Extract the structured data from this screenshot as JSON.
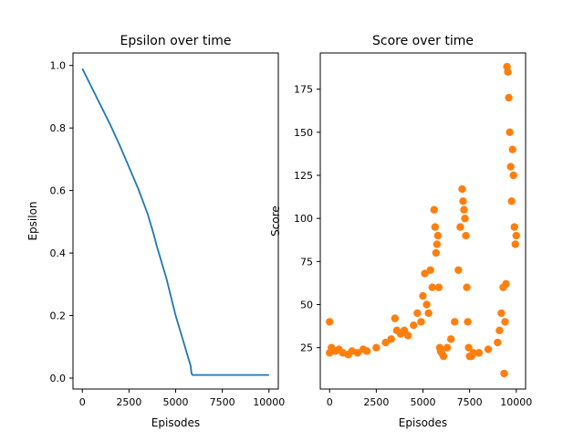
{
  "chart_data": [
    {
      "type": "line",
      "title": "Epsilon over time",
      "xlabel": "Episodes",
      "ylabel": "Epsilon",
      "xlim": [
        -500,
        10500
      ],
      "ylim": [
        -0.035,
        1.04
      ],
      "xticks": [
        0,
        2500,
        5000,
        7500,
        10000
      ],
      "yticks": [
        0.0,
        0.2,
        0.4,
        0.6,
        0.8,
        1.0
      ],
      "xtick_labels": [
        "0",
        "2500",
        "5000",
        "7500",
        "10000"
      ],
      "ytick_labels": [
        "0.0",
        "0.2",
        "0.4",
        "0.6",
        "0.8",
        "1.0"
      ],
      "color": "#1f77b4",
      "series": [
        {
          "x": [
            0,
            500,
            1000,
            1500,
            2000,
            2500,
            3000,
            3500,
            3800,
            4000,
            4500,
            5000,
            5300,
            5500,
            5700,
            5800,
            5850,
            5900,
            6000,
            7000,
            8000,
            9000,
            10000
          ],
          "y": [
            0.99,
            0.93,
            0.87,
            0.81,
            0.745,
            0.675,
            0.605,
            0.525,
            0.465,
            0.42,
            0.32,
            0.2,
            0.14,
            0.1,
            0.06,
            0.04,
            0.015,
            0.01,
            0.01,
            0.01,
            0.01,
            0.01,
            0.01
          ]
        }
      ]
    },
    {
      "type": "scatter",
      "title": "Score over time",
      "xlabel": "Episodes",
      "ylabel": "Score",
      "xlim": [
        -500,
        10500
      ],
      "ylim": [
        1,
        196
      ],
      "xticks": [
        0,
        2500,
        5000,
        7500,
        10000
      ],
      "yticks": [
        25,
        50,
        75,
        100,
        125,
        150,
        175
      ],
      "xtick_labels": [
        "0",
        "2500",
        "5000",
        "7500",
        "10000"
      ],
      "ytick_labels": [
        "25",
        "50",
        "75",
        "100",
        "125",
        "150",
        "175"
      ],
      "color": "#ff7f0e",
      "series": [
        {
          "x": [
            0,
            0,
            100,
            300,
            500,
            700,
            1000,
            1200,
            1500,
            1800,
            2000,
            2500,
            3000,
            3300,
            3500,
            3600,
            3800,
            4000,
            4200,
            4500,
            4700,
            4900,
            5000,
            5100,
            5200,
            5300,
            5400,
            5500,
            5600,
            5650,
            5700,
            5750,
            5800,
            5850,
            5900,
            5950,
            6000,
            6100,
            6300,
            6500,
            6700,
            6900,
            7000,
            7100,
            7150,
            7200,
            7250,
            7300,
            7350,
            7400,
            7450,
            7500,
            7600,
            7700,
            8000,
            8500,
            9000,
            9100,
            9200,
            9300,
            9350,
            9400,
            9450,
            9500,
            9550,
            9600,
            9650,
            9700,
            9750,
            9800,
            9850,
            9900,
            9950,
            10000
          ],
          "y": [
            40,
            22,
            25,
            23,
            24,
            22,
            21,
            23,
            22,
            24,
            23,
            25,
            28,
            30,
            42,
            35,
            33,
            35,
            32,
            38,
            45,
            40,
            55,
            68,
            50,
            45,
            70,
            60,
            105,
            95,
            80,
            85,
            90,
            60,
            25,
            23,
            22,
            20,
            25,
            30,
            40,
            70,
            95,
            117,
            110,
            105,
            100,
            90,
            60,
            40,
            25,
            20,
            20,
            22,
            22,
            24,
            28,
            35,
            45,
            60,
            10,
            40,
            62,
            188,
            185,
            170,
            150,
            130,
            110,
            140,
            125,
            95,
            85,
            90
          ]
        }
      ]
    }
  ]
}
